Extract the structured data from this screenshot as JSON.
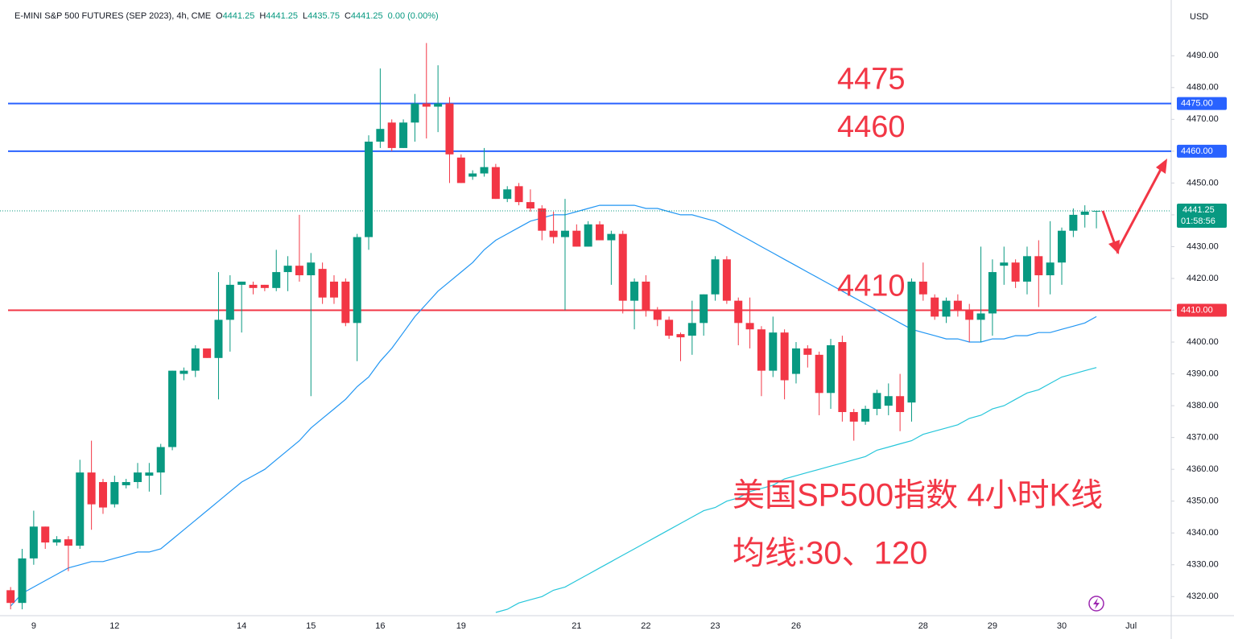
{
  "chart_data": {
    "type": "candlestick",
    "title": "E-MINI S&P 500 FUTURES (SEP 2023), 4h, CME",
    "ohlc_header": [
      {
        "key": "O",
        "value": 4441.25
      },
      {
        "key": "H",
        "value": 4441.25
      },
      {
        "key": "L",
        "value": 4435.75
      },
      {
        "key": "C",
        "value": 4441.25
      }
    ],
    "change": "0.00 (0.00%)",
    "currency": "USD",
    "categories": [
      null,
      null,
      "9",
      null,
      null,
      null,
      null,
      null,
      null,
      "12",
      null,
      null,
      null,
      null,
      null,
      null,
      null,
      null,
      null,
      null,
      "14",
      null,
      null,
      null,
      null,
      null,
      "15",
      null,
      null,
      null,
      null,
      null,
      "16",
      null,
      null,
      null,
      null,
      null,
      null,
      "19",
      null,
      null,
      null,
      null,
      null,
      null,
      null,
      null,
      null,
      "21",
      null,
      null,
      null,
      null,
      null,
      "22",
      null,
      null,
      null,
      null,
      null,
      "23",
      null,
      null,
      null,
      null,
      null,
      null,
      "26",
      null,
      null,
      null,
      null,
      null,
      null,
      null,
      null,
      null,
      null,
      "28",
      null,
      null,
      null,
      null,
      null,
      "29",
      null,
      null,
      null,
      null,
      null,
      "30",
      null,
      null,
      null,
      null,
      null,
      "Jul"
    ],
    "open": [
      4322,
      4318,
      4332,
      4342,
      4337,
      4338,
      4336,
      4359,
      4356,
      4349,
      4355,
      4356,
      4358,
      4359,
      4367,
      4390,
      4391,
      4398,
      4395,
      4407,
      4418,
      4418,
      4418,
      4417,
      4422,
      4424,
      4421,
      4423,
      4419,
      4419,
      4406,
      4433,
      4463,
      4469,
      4461,
      4469,
      4475,
      4474,
      4475,
      4458,
      4452,
      4453,
      4455,
      4445,
      4449,
      4444,
      4442,
      4435,
      4433,
      4435,
      4430,
      4437,
      4432,
      4434,
      4413,
      4419,
      4410,
      4407,
      4402.5,
      4402,
      4406,
      4415,
      4426,
      4413,
      4406,
      4404,
      4391,
      4403,
      4390,
      4398,
      4396,
      4384,
      4400,
      4378,
      4375,
      4379,
      4380,
      4383,
      4381,
      4419,
      4414,
      4408,
      4413,
      4410,
      4407,
      4409,
      4424,
      4425,
      4419,
      4427,
      4421,
      4425,
      4435,
      4440,
      4441.25,
      null,
      null,
      null
    ],
    "high": [
      4323,
      4335,
      4347,
      4342,
      4339,
      4339,
      4363,
      4369,
      4357,
      4358,
      4357,
      4362,
      4362,
      4368,
      4391,
      4392,
      4399,
      4398,
      4422,
      4421,
      4419,
      4419,
      4418,
      4429,
      4427,
      4440,
      4428,
      4425,
      4421,
      4420,
      4434,
      4465,
      4486,
      4470,
      4470,
      4478,
      4494,
      4487,
      4477,
      4459,
      4454,
      4461,
      4456,
      4449,
      4450,
      4448,
      4443,
      4441,
      4445,
      4437,
      4438,
      4438,
      4435,
      4435,
      4420,
      4421,
      4411,
      4408,
      4403,
      4413,
      4415,
      4427,
      4427,
      4414,
      4414,
      4405,
      4408,
      4404,
      4400,
      4399,
      4397,
      4401,
      4402,
      4379,
      4380,
      4385,
      4387,
      4390,
      4420,
      4425,
      4415,
      4414,
      4415,
      4412,
      4430,
      4426,
      4430,
      4426,
      4430,
      4432,
      4438,
      4436,
      4442,
      4443,
      4441.25,
      null,
      null,
      null
    ],
    "low": [
      4316,
      4316,
      4330,
      4335,
      4336,
      4328,
      4335,
      4341,
      4346,
      4348,
      4354,
      4354,
      4353,
      4352,
      4366,
      4388,
      4389,
      4395,
      4382,
      4397,
      4403,
      4415,
      4416,
      4416,
      4416,
      4419,
      4383,
      4412,
      4412,
      4405,
      4394,
      4429,
      4461,
      4460,
      4461,
      4463,
      4464,
      4466,
      4450,
      4450,
      4451,
      4452,
      4445,
      4444,
      4443,
      4441,
      4432,
      4431,
      4410,
      4430,
      4430,
      4432,
      4418,
      4409,
      4404,
      4408,
      4405,
      4401,
      4394,
      4396,
      4402,
      4413,
      4412,
      4399,
      4398,
      4383,
      4389,
      4382,
      4387,
      4392,
      4377,
      4379,
      4375,
      4369,
      4374,
      4377,
      4377,
      4372,
      4375,
      4413,
      4407,
      4406,
      4408,
      4400,
      4400,
      4402,
      4418,
      4417,
      4415,
      4411,
      4415,
      4418,
      4433,
      4436,
      4435.75,
      null,
      null,
      null
    ],
    "close": [
      4318,
      4332,
      4342,
      4337,
      4338,
      4336,
      4359,
      4349,
      4348,
      4356,
      4356,
      4359,
      4359,
      4367,
      4391,
      4391,
      4398,
      4395,
      4407,
      4418,
      4419,
      4417,
      4417,
      4422,
      4424,
      4421,
      4425,
      4414,
      4414,
      4406,
      4433,
      4463,
      4467,
      4461,
      4469,
      4475,
      4474,
      4475,
      4459,
      4450,
      4453,
      4455,
      4445,
      4448,
      4444,
      4442,
      4435,
      4433,
      4435,
      4430,
      4437,
      4432,
      4434,
      4413,
      4419,
      4410,
      4407,
      4402,
      4401.5,
      4406,
      4415,
      4426,
      4413,
      4406,
      4404,
      4391,
      4403,
      4388,
      4398,
      4396,
      4384,
      4399,
      4378,
      4375,
      4379,
      4384,
      4383,
      4378,
      4419,
      4415,
      4408,
      4413,
      4410,
      4407,
      4409,
      4422,
      4425,
      4419,
      4427,
      4421,
      4425,
      4435,
      4440,
      4441,
      4441.25,
      null,
      null,
      null
    ],
    "up_color": "#089981",
    "down_color": "#f23645",
    "overlays": [
      {
        "color": "#2196f3",
        "values": [
          4317,
          4321,
          4323,
          4325,
          4327,
          4329,
          4330,
          4331,
          4331,
          4332,
          4333,
          4334,
          4334,
          4335,
          4338,
          4341,
          4344,
          4347,
          4350,
          4353,
          4356,
          4358,
          4360,
          4363,
          4366,
          4369,
          4373,
          4376,
          4379,
          4382,
          4386,
          4389,
          4394,
          4398,
          4403,
          4408,
          4412,
          4416,
          4419,
          4422,
          4425,
          4429,
          4432,
          4434,
          4436,
          4438,
          4439,
          4440,
          4440,
          4441,
          4442,
          4443,
          4443,
          4443,
          4443,
          4442,
          4442,
          4441,
          4440,
          4440,
          4439,
          4438,
          4436,
          4434,
          4432,
          4430,
          4428,
          4426,
          4424,
          4422,
          4420,
          4418,
          4416,
          4414,
          4412,
          4410,
          4408,
          4406,
          4404,
          4403,
          4402,
          4401,
          4401,
          4400,
          4400,
          4401,
          4401,
          4402,
          4402,
          4403,
          4403,
          4404,
          4405,
          4406,
          4408,
          null,
          null,
          null
        ]
      },
      {
        "color": "#26c6da",
        "values": [
          null,
          null,
          null,
          null,
          null,
          null,
          null,
          null,
          null,
          null,
          null,
          null,
          null,
          null,
          null,
          null,
          null,
          null,
          null,
          null,
          null,
          null,
          null,
          null,
          null,
          null,
          null,
          null,
          null,
          null,
          null,
          null,
          null,
          null,
          null,
          null,
          null,
          null,
          null,
          null,
          null,
          null,
          4315,
          4316,
          4318,
          4319,
          4320,
          4322,
          4323,
          4325,
          4327,
          4329,
          4331,
          4333,
          4335,
          4337,
          4339,
          4341,
          4343,
          4345,
          4347,
          4348,
          4350,
          4351,
          4353,
          4354,
          4355,
          4357,
          4358,
          4359,
          4360,
          4361,
          4362,
          4363,
          4364,
          4366,
          4367,
          4368,
          4369,
          4371,
          4372,
          4373,
          4374,
          4376,
          4377,
          4379,
          4380,
          4382,
          4384,
          4385,
          4387,
          4389,
          4390,
          4391,
          4392,
          null,
          null,
          null
        ]
      }
    ],
    "hlines": [
      {
        "value": 4475,
        "label": "4475.00",
        "color": "#2962ff"
      },
      {
        "value": 4460,
        "label": "4460.00",
        "color": "#2962ff"
      },
      {
        "value": 4410,
        "label": "4410.00",
        "color": "#f23645"
      }
    ],
    "last_price": {
      "value": 4441.25,
      "countdown": "01:58:56"
    },
    "annotations": [
      "美国SP500指数 4小时K线",
      "均线:30、120"
    ],
    "ylim": [
      4314,
      4505.5
    ],
    "yticks": [
      {
        "value": 4320,
        "label": "4320.00"
      },
      {
        "value": 4330,
        "label": "4330.00"
      },
      {
        "value": 4340,
        "label": "4340.00"
      },
      {
        "value": 4350,
        "label": "4350.00"
      },
      {
        "value": 4360,
        "label": "4360.00"
      },
      {
        "value": 4370,
        "label": "4370.00"
      },
      {
        "value": 4380,
        "label": "4380.00"
      },
      {
        "value": 4390,
        "label": "4390.00"
      },
      {
        "value": 4400,
        "label": "4400.00"
      },
      {
        "value": 4410,
        "label": "4410.00"
      },
      {
        "value": 4420,
        "label": "4420.00"
      },
      {
        "value": 4430,
        "label": "4430.00"
      },
      {
        "value": 4440,
        "label": "4440.00"
      },
      {
        "value": 4450,
        "label": "4450.00"
      },
      {
        "value": 4460,
        "label": "4460.00"
      },
      {
        "value": 4470,
        "label": "4470.00"
      },
      {
        "value": 4480,
        "label": "4480.00"
      },
      {
        "value": 4490,
        "label": "4490.00"
      }
    ],
    "grid": false
  }
}
